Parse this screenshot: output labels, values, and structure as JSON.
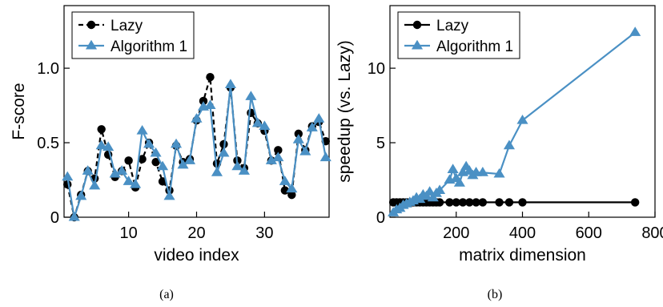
{
  "chart_data": [
    {
      "type": "line",
      "xlabel": "video index",
      "ylabel": "F-score",
      "xlim": [
        0.5,
        39.5
      ],
      "ylim": [
        0,
        1.42
      ],
      "xticks": [
        10,
        20,
        30
      ],
      "yticks": [
        0,
        0.5,
        1.0
      ],
      "ytick_labels": [
        "0",
        "0.5",
        "1.0"
      ],
      "grid": false,
      "legend": "top-left",
      "caption": "(a)",
      "series": [
        {
          "name": "Lazy",
          "color": "#000000",
          "marker": "circle",
          "dashed": true,
          "x": [
            1,
            2,
            3,
            4,
            5,
            6,
            7,
            8,
            9,
            10,
            11,
            12,
            13,
            14,
            15,
            16,
            17,
            18,
            19,
            20,
            21,
            22,
            23,
            24,
            25,
            26,
            27,
            28,
            29,
            30,
            31,
            32,
            33,
            34,
            35,
            36,
            37,
            38,
            39
          ],
          "y": [
            0.22,
            0.0,
            0.15,
            0.31,
            0.26,
            0.59,
            0.42,
            0.27,
            0.31,
            0.38,
            0.2,
            0.39,
            0.5,
            0.37,
            0.24,
            0.18,
            0.48,
            0.37,
            0.39,
            0.65,
            0.78,
            0.94,
            0.36,
            0.49,
            0.87,
            0.38,
            0.33,
            0.7,
            0.63,
            0.58,
            0.38,
            0.45,
            0.18,
            0.15,
            0.56,
            0.45,
            0.61,
            0.64,
            0.51
          ]
        },
        {
          "name": "Algorithm 1",
          "color": "#4a90c4",
          "marker": "triangle",
          "dashed": false,
          "x": [
            1,
            2,
            3,
            4,
            5,
            6,
            7,
            8,
            9,
            10,
            11,
            12,
            13,
            14,
            15,
            16,
            17,
            18,
            19,
            20,
            21,
            22,
            23,
            24,
            25,
            26,
            27,
            28,
            29,
            30,
            31,
            32,
            33,
            34,
            35,
            36,
            37,
            38,
            39
          ],
          "y": [
            0.27,
            0.0,
            0.14,
            0.31,
            0.21,
            0.48,
            0.47,
            0.29,
            0.31,
            0.24,
            0.22,
            0.58,
            0.49,
            0.43,
            0.34,
            0.14,
            0.49,
            0.35,
            0.38,
            0.66,
            0.74,
            0.75,
            0.3,
            0.43,
            0.89,
            0.34,
            0.31,
            0.81,
            0.63,
            0.61,
            0.38,
            0.4,
            0.24,
            0.19,
            0.52,
            0.44,
            0.6,
            0.66,
            0.4
          ]
        }
      ]
    },
    {
      "type": "line",
      "xlabel": "matrix dimension",
      "ylabel": "speedup (vs. Lazy)",
      "xlim": [
        0,
        800
      ],
      "ylim": [
        0,
        14.2
      ],
      "xticks": [
        200,
        400,
        600,
        800
      ],
      "yticks": [
        0,
        5,
        10
      ],
      "ytick_labels": [
        "0",
        "5",
        "10"
      ],
      "grid": false,
      "legend": "top-left",
      "caption": "(b)",
      "series": [
        {
          "name": "Lazy",
          "color": "#000000",
          "marker": "circle",
          "dashed": false,
          "x": [
            10,
            20,
            30,
            40,
            50,
            60,
            70,
            80,
            90,
            100,
            110,
            120,
            130,
            140,
            150,
            180,
            200,
            220,
            240,
            260,
            280,
            330,
            360,
            400,
            740
          ],
          "y": [
            1,
            1,
            1,
            1,
            1,
            1,
            1,
            1,
            1,
            1,
            1,
            1,
            1,
            1,
            1,
            1,
            1,
            1,
            1,
            1,
            1,
            1,
            1,
            1,
            1
          ]
        },
        {
          "name": "Algorithm 1",
          "color": "#4a90c4",
          "marker": "triangle",
          "dashed": false,
          "x": [
            10,
            20,
            30,
            40,
            50,
            60,
            70,
            80,
            90,
            100,
            110,
            120,
            130,
            140,
            150,
            180,
            190,
            200,
            210,
            220,
            230,
            240,
            250,
            260,
            280,
            330,
            360,
            400,
            740
          ],
          "y": [
            0.3,
            0.5,
            0.6,
            0.8,
            0.9,
            1.0,
            1.1,
            1.3,
            1.2,
            1.5,
            1.4,
            1.7,
            1.3,
            1.6,
            1.8,
            2.5,
            3.2,
            2.6,
            2.3,
            3.0,
            3.4,
            3.1,
            2.8,
            3.0,
            3.0,
            2.9,
            4.8,
            6.5,
            12.4
          ]
        }
      ]
    }
  ]
}
